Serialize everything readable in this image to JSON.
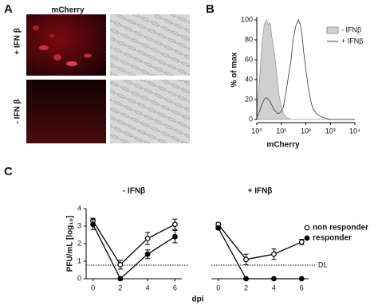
{
  "panels": {
    "a": "A",
    "b": "B",
    "c": "C"
  },
  "images": {
    "column_label": "mCherry",
    "row_labels": [
      "+ IFN β",
      "- IFN β"
    ]
  },
  "shared_xlabel": "dpi",
  "chart_data": [
    {
      "type": "area",
      "xscale": "log",
      "xlim": [
        1,
        10000
      ],
      "xticks": [
        {
          "value": 1,
          "label": "10⁰"
        },
        {
          "value": 10,
          "label": "10¹"
        },
        {
          "value": 100,
          "label": "10²"
        },
        {
          "value": 1000,
          "label": "10³"
        },
        {
          "value": 10000,
          "label": "10⁴"
        }
      ],
      "ylim": [
        0,
        100
      ],
      "yticks": [
        0,
        20,
        40,
        60,
        80,
        100
      ],
      "ylabel": "% of max",
      "xlabel": "mCherry",
      "legend": "upper right",
      "x": [
        1,
        1.3,
        1.6,
        2,
        2.5,
        3,
        3.5,
        4,
        5,
        6,
        7,
        8,
        10,
        12,
        15,
        20,
        25,
        30,
        40,
        50,
        60,
        70,
        80,
        100,
        130,
        160,
        200,
        300,
        500,
        1000,
        3000,
        10000
      ],
      "series": [
        {
          "name": "- IFNβ",
          "color": "#d0d0d0",
          "fill": true,
          "values": [
            10,
            40,
            75,
            95,
            100,
            95,
            97,
            85,
            70,
            55,
            40,
            25,
            12,
            6,
            3,
            1,
            0,
            0,
            0,
            0,
            0,
            0,
            0,
            0,
            0,
            0,
            0,
            0,
            0,
            0,
            0,
            0
          ]
        },
        {
          "name": "+ IFNβ",
          "color": "#333333",
          "fill": false,
          "values": [
            2,
            8,
            15,
            20,
            22,
            20,
            18,
            15,
            10,
            8,
            6,
            6,
            8,
            12,
            25,
            45,
            60,
            80,
            95,
            100,
            95,
            85,
            70,
            50,
            30,
            18,
            10,
            5,
            2,
            0,
            0,
            0
          ]
        }
      ]
    },
    {
      "type": "line",
      "title": "- IFNβ",
      "x": [
        0,
        2,
        4,
        6
      ],
      "xlim": [
        -0.5,
        6.5
      ],
      "xticks": [
        0,
        2,
        4,
        6
      ],
      "ylim": [
        0,
        4
      ],
      "yticks": [
        0,
        1,
        2,
        3,
        4
      ],
      "ylabel": "PFU/mL [log₁₀]",
      "detection_limit": 0.77,
      "series": [
        {
          "marker": "open",
          "color": "#000000",
          "values": [
            3.3,
            0.8,
            2.3,
            3.1
          ],
          "errors": [
            0.15,
            0.25,
            0.35,
            0.3
          ]
        },
        {
          "marker": "filled",
          "color": "#000000",
          "values": [
            3.1,
            0,
            1.4,
            2.4
          ],
          "errors": [
            0.3,
            0.05,
            0.25,
            0.35
          ]
        }
      ]
    },
    {
      "type": "line",
      "title": "+ IFNβ",
      "x": [
        0,
        2,
        4,
        6
      ],
      "xlim": [
        -0.5,
        6.5
      ],
      "xticks": [
        0,
        2,
        4,
        6
      ],
      "ylim": [
        0,
        4
      ],
      "detection_limit": 0.77,
      "detection_label": "DL",
      "legend": "right",
      "series": [
        {
          "name": "non responder",
          "marker": "open",
          "color": "#000000",
          "values": [
            3.1,
            1.1,
            1.4,
            2.1
          ],
          "errors": [
            0.1,
            0.3,
            0.3,
            0.15
          ]
        },
        {
          "name": "responder",
          "marker": "filled",
          "color": "#000000",
          "values": [
            2.9,
            0,
            0,
            0
          ],
          "errors": [
            0.1,
            0.05,
            0.05,
            0.05
          ]
        }
      ]
    }
  ]
}
